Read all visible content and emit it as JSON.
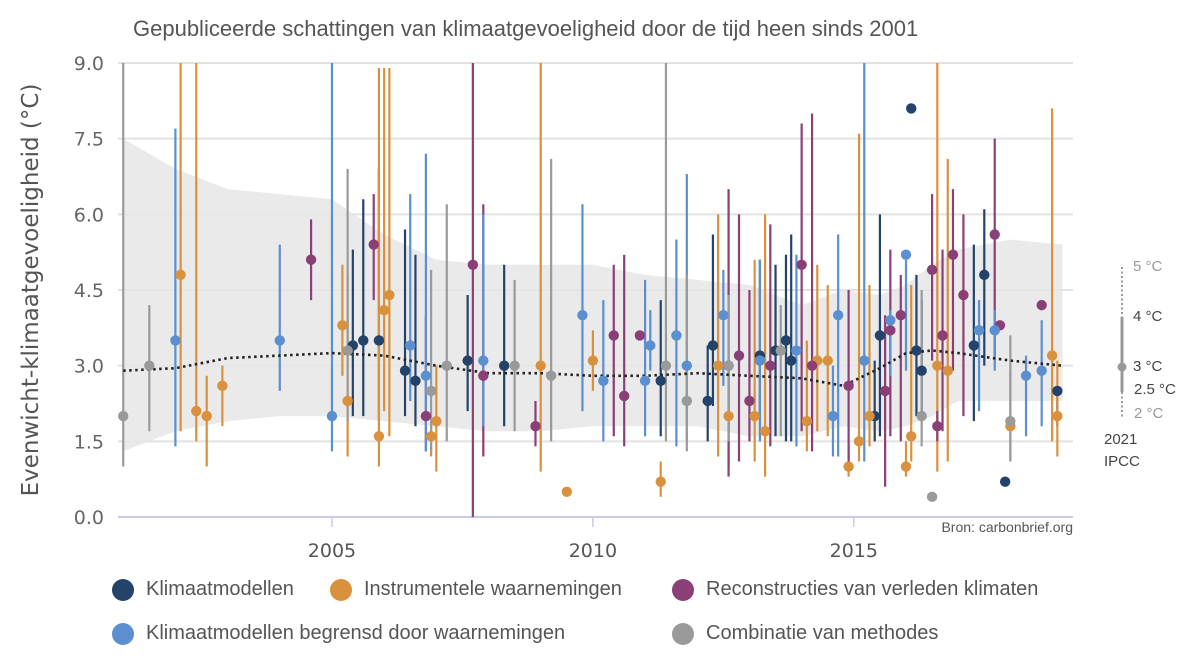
{
  "chart_data": {
    "type": "scatter",
    "title": "Gepubliceerde schattingen van klimaatgevoeligheid door de tijd heen sinds 2001",
    "xlabel": "",
    "ylabel": "Evenwicht-klimaatgevoeligheid (°C)",
    "xlim": [
      2000.9,
      2019.2
    ],
    "ylim": [
      0,
      9
    ],
    "x_ticks": [
      "2005",
      "2010",
      "2015"
    ],
    "x_tick_values": [
      2005,
      2010,
      2015
    ],
    "y_ticks": [
      "0.0",
      "1.5",
      "3.0",
      "4.5",
      "6.0",
      "7.5",
      "9.0"
    ],
    "y_tick_values": [
      0,
      1.5,
      3.0,
      4.5,
      6.0,
      7.5,
      9.0
    ],
    "grid": true,
    "legend_position": "bottom",
    "source": "Bron: carbonbrief.org",
    "series": [
      {
        "name": "Klimaatmodellen",
        "color": "#23436b",
        "points": [
          {
            "x": 2005.4,
            "y": 3.4,
            "lo": 2.0,
            "hi": 5.3
          },
          {
            "x": 2005.6,
            "y": 3.5,
            "lo": 2.0,
            "hi": 6.3
          },
          {
            "x": 2005.9,
            "y": 3.5,
            "lo": 1.9,
            "hi": 6.9
          },
          {
            "x": 2006.4,
            "y": 2.9,
            "lo": 2.0,
            "hi": 5.7
          },
          {
            "x": 2006.6,
            "y": 2.7,
            "lo": 1.8,
            "hi": 5.2
          },
          {
            "x": 2007.6,
            "y": 3.1,
            "lo": 2.1,
            "hi": 4.4
          },
          {
            "x": 2008.3,
            "y": 3.0,
            "lo": 1.8,
            "hi": 5.0
          },
          {
            "x": 2011.3,
            "y": 2.7,
            "lo": 1.6,
            "hi": 4.3
          },
          {
            "x": 2012.2,
            "y": 2.3,
            "lo": 1.5,
            "hi": 3.4
          },
          {
            "x": 2012.3,
            "y": 3.4,
            "lo": 2.2,
            "hi": 5.6
          },
          {
            "x": 2013.2,
            "y": 3.2,
            "lo": 2.0,
            "hi": 5.1
          },
          {
            "x": 2013.5,
            "y": 3.3,
            "lo": 1.6,
            "hi": 5.0
          },
          {
            "x": 2013.7,
            "y": 3.5,
            "lo": 1.5,
            "hi": 5.2
          },
          {
            "x": 2013.8,
            "y": 3.1,
            "lo": 1.5,
            "hi": 5.6
          },
          {
            "x": 2015.5,
            "y": 3.6,
            "lo": 1.6,
            "hi": 6.0
          },
          {
            "x": 2015.4,
            "y": 2.0,
            "lo": 1.5,
            "hi": 3.1
          },
          {
            "x": 2016.1,
            "y": 8.1,
            "lo": 8.1,
            "hi": 8.1
          },
          {
            "x": 2016.2,
            "y": 3.3,
            "lo": 2.0,
            "hi": 4.8
          },
          {
            "x": 2016.3,
            "y": 2.9,
            "lo": 1.9,
            "hi": 4.3
          },
          {
            "x": 2017.3,
            "y": 3.4,
            "lo": 1.9,
            "hi": 5.4
          },
          {
            "x": 2017.5,
            "y": 4.8,
            "lo": 3.0,
            "hi": 6.1
          },
          {
            "x": 2017.9,
            "y": 0.7,
            "lo": 0.7,
            "hi": 0.7
          },
          {
            "x": 2018.9,
            "y": 2.5,
            "lo": 1.8,
            "hi": 2.5
          }
        ]
      },
      {
        "name": "Instrumentele waarnemingen",
        "color": "#d9913d",
        "points": [
          {
            "x": 2002.1,
            "y": 4.8,
            "lo": 1.7,
            "hi": 9.0
          },
          {
            "x": 2002.4,
            "y": 2.1,
            "lo": 1.5,
            "hi": 9.0
          },
          {
            "x": 2002.6,
            "y": 2.0,
            "lo": 1.0,
            "hi": 2.8
          },
          {
            "x": 2002.9,
            "y": 2.6,
            "lo": 1.8,
            "hi": 3.0
          },
          {
            "x": 2005.2,
            "y": 3.8,
            "lo": 2.8,
            "hi": 5.0
          },
          {
            "x": 2005.3,
            "y": 2.3,
            "lo": 1.2,
            "hi": 4.8
          },
          {
            "x": 2005.9,
            "y": 1.6,
            "lo": 1.0,
            "hi": 8.9
          },
          {
            "x": 2006.0,
            "y": 4.1,
            "lo": 2.1,
            "hi": 8.9
          },
          {
            "x": 2006.1,
            "y": 4.4,
            "lo": 1.6,
            "hi": 8.9
          },
          {
            "x": 2006.9,
            "y": 1.6,
            "lo": 1.2,
            "hi": 1.9
          },
          {
            "x": 2007.0,
            "y": 1.9,
            "lo": 0.9,
            "hi": 3.0
          },
          {
            "x": 2009.0,
            "y": 3.0,
            "lo": 0.9,
            "hi": 9.0
          },
          {
            "x": 2009.5,
            "y": 0.5,
            "lo": 0.5,
            "hi": 0.5
          },
          {
            "x": 2010.0,
            "y": 3.1,
            "lo": 2.5,
            "hi": 3.7
          },
          {
            "x": 2011.3,
            "y": 0.7,
            "lo": 0.4,
            "hi": 1.1
          },
          {
            "x": 2012.4,
            "y": 3.0,
            "lo": 1.2,
            "hi": 6.0
          },
          {
            "x": 2012.6,
            "y": 2.0,
            "lo": 1.0,
            "hi": 3.2
          },
          {
            "x": 2013.1,
            "y": 2.0,
            "lo": 1.1,
            "hi": 5.1
          },
          {
            "x": 2013.3,
            "y": 1.7,
            "lo": 0.8,
            "hi": 6.0
          },
          {
            "x": 2014.1,
            "y": 1.9,
            "lo": 1.3,
            "hi": 3.5
          },
          {
            "x": 2014.3,
            "y": 3.1,
            "lo": 1.7,
            "hi": 5.0
          },
          {
            "x": 2014.5,
            "y": 3.1,
            "lo": 1.6,
            "hi": 4.6
          },
          {
            "x": 2014.9,
            "y": 1.0,
            "lo": 0.8,
            "hi": 1.4
          },
          {
            "x": 2015.1,
            "y": 1.5,
            "lo": 1.1,
            "hi": 7.6
          },
          {
            "x": 2015.3,
            "y": 2.0,
            "lo": 1.4,
            "hi": 4.6
          },
          {
            "x": 2016.0,
            "y": 1.0,
            "lo": 0.8,
            "hi": 1.5
          },
          {
            "x": 2016.1,
            "y": 1.6,
            "lo": 1.1,
            "hi": 4.6
          },
          {
            "x": 2016.6,
            "y": 3.0,
            "lo": 0.9,
            "hi": 9.0
          },
          {
            "x": 2016.8,
            "y": 2.9,
            "lo": 1.1,
            "hi": 7.1
          },
          {
            "x": 2018.0,
            "y": 1.8,
            "lo": 1.1,
            "hi": 2.9
          },
          {
            "x": 2018.8,
            "y": 3.2,
            "lo": 1.5,
            "hi": 8.1
          },
          {
            "x": 2018.9,
            "y": 2.0,
            "lo": 1.2,
            "hi": 3.1
          }
        ]
      },
      {
        "name": "Reconstructies van verleden klimaten",
        "color": "#8b3f77",
        "points": [
          {
            "x": 2004.6,
            "y": 5.1,
            "lo": 4.3,
            "hi": 5.9
          },
          {
            "x": 2005.8,
            "y": 5.4,
            "lo": 4.3,
            "hi": 6.4
          },
          {
            "x": 2006.8,
            "y": 2.0,
            "lo": 1.3,
            "hi": 4.0
          },
          {
            "x": 2007.7,
            "y": 5.0,
            "lo": 0.0,
            "hi": 9.0
          },
          {
            "x": 2007.9,
            "y": 2.8,
            "lo": 1.2,
            "hi": 6.2
          },
          {
            "x": 2008.9,
            "y": 1.8,
            "lo": 1.4,
            "hi": 2.3
          },
          {
            "x": 2010.4,
            "y": 3.6,
            "lo": 1.6,
            "hi": 5.0
          },
          {
            "x": 2010.6,
            "y": 2.4,
            "lo": 1.4,
            "hi": 5.2
          },
          {
            "x": 2010.9,
            "y": 3.6,
            "lo": 3.6,
            "hi": 3.6
          },
          {
            "x": 2012.6,
            "y": 3.0,
            "lo": 0.8,
            "hi": 6.5
          },
          {
            "x": 2012.8,
            "y": 3.2,
            "lo": 1.1,
            "hi": 6.0
          },
          {
            "x": 2013.0,
            "y": 2.3,
            "lo": 1.5,
            "hi": 4.5
          },
          {
            "x": 2013.4,
            "y": 3.0,
            "lo": 1.4,
            "hi": 5.8
          },
          {
            "x": 2014.0,
            "y": 5.0,
            "lo": 1.7,
            "hi": 7.8
          },
          {
            "x": 2014.2,
            "y": 3.0,
            "lo": 1.3,
            "hi": 8.0
          },
          {
            "x": 2014.9,
            "y": 2.6,
            "lo": 1.1,
            "hi": 4.5
          },
          {
            "x": 2015.6,
            "y": 2.5,
            "lo": 0.6,
            "hi": 4.0
          },
          {
            "x": 2015.7,
            "y": 3.7,
            "lo": 1.6,
            "hi": 5.3
          },
          {
            "x": 2015.9,
            "y": 4.0,
            "lo": 1.5,
            "hi": 4.8
          },
          {
            "x": 2016.5,
            "y": 4.9,
            "lo": 3.1,
            "hi": 6.4
          },
          {
            "x": 2016.7,
            "y": 3.6,
            "lo": 1.7,
            "hi": 5.3
          },
          {
            "x": 2016.6,
            "y": 1.8,
            "lo": 1.5,
            "hi": 2.1
          },
          {
            "x": 2016.9,
            "y": 5.2,
            "lo": 2.9,
            "hi": 6.5
          },
          {
            "x": 2017.1,
            "y": 4.4,
            "lo": 2.0,
            "hi": 6.0
          },
          {
            "x": 2017.7,
            "y": 5.6,
            "lo": 3.2,
            "hi": 7.5
          },
          {
            "x": 2017.8,
            "y": 3.8,
            "lo": 3.8,
            "hi": 3.8
          },
          {
            "x": 2018.6,
            "y": 4.2,
            "lo": 4.2,
            "hi": 4.2
          }
        ]
      },
      {
        "name": "Klimaatmodellen begrensd door waarnemingen",
        "color": "#5b8fd0",
        "points": [
          {
            "x": 2002.0,
            "y": 3.5,
            "lo": 1.4,
            "hi": 7.7
          },
          {
            "x": 2004.0,
            "y": 3.5,
            "lo": 2.5,
            "hi": 5.4
          },
          {
            "x": 2005.0,
            "y": 2.0,
            "lo": 1.3,
            "hi": 9.0
          },
          {
            "x": 2006.5,
            "y": 3.4,
            "lo": 2.3,
            "hi": 6.4
          },
          {
            "x": 2006.8,
            "y": 2.8,
            "lo": 1.3,
            "hi": 7.2
          },
          {
            "x": 2007.9,
            "y": 3.1,
            "lo": 1.8,
            "hi": 6.0
          },
          {
            "x": 2009.8,
            "y": 4.0,
            "lo": 2.1,
            "hi": 6.2
          },
          {
            "x": 2010.2,
            "y": 2.7,
            "lo": 1.5,
            "hi": 4.3
          },
          {
            "x": 2011.0,
            "y": 2.7,
            "lo": 1.6,
            "hi": 4.7
          },
          {
            "x": 2011.1,
            "y": 3.4,
            "lo": 2.9,
            "hi": 4.1
          },
          {
            "x": 2011.6,
            "y": 3.6,
            "lo": 1.4,
            "hi": 5.5
          },
          {
            "x": 2011.8,
            "y": 3.0,
            "lo": 1.5,
            "hi": 6.8
          },
          {
            "x": 2012.5,
            "y": 4.0,
            "lo": 2.6,
            "hi": 4.9
          },
          {
            "x": 2013.2,
            "y": 3.1,
            "lo": 1.5,
            "hi": 5.1
          },
          {
            "x": 2013.9,
            "y": 3.3,
            "lo": 1.4,
            "hi": 5.2
          },
          {
            "x": 2014.6,
            "y": 2.0,
            "lo": 1.2,
            "hi": 3.0
          },
          {
            "x": 2014.7,
            "y": 4.0,
            "lo": 1.2,
            "hi": 5.6
          },
          {
            "x": 2015.2,
            "y": 3.1,
            "lo": 1.1,
            "hi": 9.0
          },
          {
            "x": 2015.7,
            "y": 3.9,
            "lo": 2.8,
            "hi": 4.1
          },
          {
            "x": 2016.0,
            "y": 5.2,
            "lo": 2.9,
            "hi": 5.1
          },
          {
            "x": 2017.4,
            "y": 3.7,
            "lo": 2.1,
            "hi": 4.3
          },
          {
            "x": 2017.7,
            "y": 3.7,
            "lo": 2.9,
            "hi": 4.1
          },
          {
            "x": 2018.3,
            "y": 2.8,
            "lo": 1.6,
            "hi": 3.2
          },
          {
            "x": 2018.6,
            "y": 2.9,
            "lo": 1.8,
            "hi": 3.9
          }
        ]
      },
      {
        "name": "Combinatie van methodes",
        "color": "#9a9a9a",
        "points": [
          {
            "x": 2001.0,
            "y": 2.0,
            "lo": 1.0,
            "hi": 9.0
          },
          {
            "x": 2001.5,
            "y": 3.0,
            "lo": 1.7,
            "hi": 4.2
          },
          {
            "x": 2005.3,
            "y": 3.3,
            "lo": 1.9,
            "hi": 6.9
          },
          {
            "x": 2006.9,
            "y": 2.5,
            "lo": 1.3,
            "hi": 4.9
          },
          {
            "x": 2007.2,
            "y": 3.0,
            "lo": 1.5,
            "hi": 6.2
          },
          {
            "x": 2008.5,
            "y": 3.0,
            "lo": 1.7,
            "hi": 4.7
          },
          {
            "x": 2009.2,
            "y": 2.8,
            "lo": 1.5,
            "hi": 7.1
          },
          {
            "x": 2011.4,
            "y": 3.0,
            "lo": 1.5,
            "hi": 9.0
          },
          {
            "x": 2011.8,
            "y": 2.3,
            "lo": 1.3,
            "hi": 4.8
          },
          {
            "x": 2012.6,
            "y": 3.0,
            "lo": 1.5,
            "hi": 4.4
          },
          {
            "x": 2013.6,
            "y": 3.3,
            "lo": 1.6,
            "hi": 4.2
          },
          {
            "x": 2016.3,
            "y": 2.0,
            "lo": 1.4,
            "hi": 4.5
          },
          {
            "x": 2016.5,
            "y": 0.4,
            "lo": 0.4,
            "hi": 0.4
          },
          {
            "x": 2018.0,
            "y": 1.9,
            "lo": 1.1,
            "hi": 3.6
          }
        ]
      }
    ],
    "trend_line": {
      "name": "trend",
      "x": [
        2001.0,
        2002.0,
        2003.0,
        2004.0,
        2005.0,
        2006.0,
        2007.0,
        2008.0,
        2009.0,
        2010.0,
        2011.0,
        2012.0,
        2013.0,
        2014.0,
        2014.8,
        2015.5,
        2016.0,
        2016.5,
        2017.0,
        2018.0,
        2019.0
      ],
      "y": [
        2.9,
        2.95,
        3.15,
        3.2,
        3.25,
        3.2,
        3.0,
        2.85,
        2.85,
        2.8,
        2.8,
        2.85,
        2.8,
        2.75,
        2.6,
        2.95,
        3.25,
        3.3,
        3.25,
        3.1,
        3.0
      ]
    },
    "uncertainty_band": {
      "x": [
        2001.0,
        2002.0,
        2003.0,
        2004.0,
        2005.0,
        2006.0,
        2007.0,
        2008.0,
        2009.0,
        2010.0,
        2011.0,
        2012.0,
        2013.0,
        2014.0,
        2014.8,
        2015.5,
        2016.0,
        2016.5,
        2017.0,
        2018.0,
        2019.0
      ],
      "upper": [
        7.5,
        6.9,
        6.5,
        6.4,
        6.3,
        5.6,
        5.1,
        5.0,
        5.0,
        5.0,
        4.8,
        4.7,
        4.6,
        4.2,
        4.5,
        4.4,
        4.6,
        5.0,
        5.3,
        5.5,
        5.4
      ],
      "lower": [
        1.3,
        1.7,
        1.9,
        2.0,
        2.0,
        1.9,
        1.8,
        1.7,
        1.7,
        1.8,
        1.8,
        1.8,
        1.6,
        1.6,
        1.8,
        1.7,
        1.8,
        2.0,
        2.3,
        2.3,
        2.3
      ]
    },
    "ipcc_2021": {
      "label_year": "2021",
      "label_org": "IPCC",
      "best": 3,
      "likely": [
        2.5,
        4
      ],
      "very_likely": [
        2,
        5
      ],
      "labels": [
        "5 °C",
        "4 °C",
        "3 °C",
        "2.5 °C",
        "2 °C"
      ]
    }
  },
  "legend": [
    {
      "label": "Klimaatmodellen",
      "color": "#23436b"
    },
    {
      "label": "Instrumentele waarnemingen",
      "color": "#d9913d"
    },
    {
      "label": "Reconstructies van verleden klimaten",
      "color": "#8b3f77"
    },
    {
      "label": "Klimaatmodellen begrensd door waarnemingen",
      "color": "#5b8fd0"
    },
    {
      "label": "Combinatie van methodes",
      "color": "#9a9a9a"
    }
  ]
}
